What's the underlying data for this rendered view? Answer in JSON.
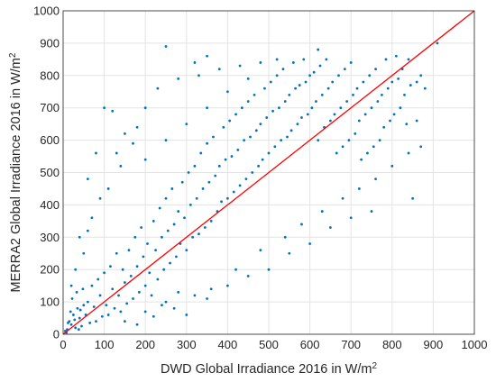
{
  "chart_data": {
    "type": "scatter",
    "xlabel": {
      "text": "DWD Global Irradiance 2016 in W/m",
      "sup": "2"
    },
    "ylabel": {
      "text": "MERRA2 Global Irradiance 2016 in W/m",
      "sup": "2"
    },
    "xlim": [
      0,
      1000
    ],
    "ylim": [
      0,
      1000
    ],
    "x_ticks": [
      0,
      100,
      200,
      300,
      400,
      500,
      600,
      700,
      800,
      900,
      1000
    ],
    "y_ticks": [
      0,
      100,
      200,
      300,
      400,
      500,
      600,
      700,
      800,
      900,
      1000
    ],
    "x_tick_labels": [
      "0",
      "100",
      "200",
      "300",
      "400",
      "500",
      "600",
      "700",
      "800",
      "900",
      "1000"
    ],
    "y_tick_labels": [
      "0",
      "100",
      "200",
      "300",
      "400",
      "500",
      "600",
      "700",
      "800",
      "900",
      "1000"
    ],
    "grid": true,
    "reference_line": {
      "name": "1:1 line",
      "x": [
        0,
        1000
      ],
      "y": [
        0,
        1000
      ],
      "color": "#ff0000"
    },
    "marker_color": "#0072bd",
    "points": [
      [
        5,
        10
      ],
      [
        10,
        15
      ],
      [
        15,
        40
      ],
      [
        20,
        30
      ],
      [
        25,
        60
      ],
      [
        30,
        20
      ],
      [
        35,
        80
      ],
      [
        40,
        50
      ],
      [
        45,
        25
      ],
      [
        50,
        90
      ],
      [
        8,
        5
      ],
      [
        12,
        35
      ],
      [
        18,
        70
      ],
      [
        22,
        110
      ],
      [
        28,
        45
      ],
      [
        33,
        130
      ],
      [
        38,
        15
      ],
      [
        42,
        75
      ],
      [
        48,
        140
      ],
      [
        55,
        60
      ],
      [
        60,
        100
      ],
      [
        65,
        35
      ],
      [
        70,
        150
      ],
      [
        75,
        85
      ],
      [
        80,
        40
      ],
      [
        85,
        170
      ],
      [
        90,
        120
      ],
      [
        95,
        55
      ],
      [
        100,
        190
      ],
      [
        105,
        90
      ],
      [
        110,
        60
      ],
      [
        115,
        210
      ],
      [
        120,
        140
      ],
      [
        125,
        80
      ],
      [
        130,
        250
      ],
      [
        135,
        120
      ],
      [
        140,
        70
      ],
      [
        145,
        200
      ],
      [
        150,
        160
      ],
      [
        155,
        95
      ],
      [
        160,
        260
      ],
      [
        165,
        180
      ],
      [
        170,
        110
      ],
      [
        175,
        300
      ],
      [
        180,
        210
      ],
      [
        185,
        130
      ],
      [
        190,
        330
      ],
      [
        195,
        240
      ],
      [
        200,
        150
      ],
      [
        205,
        280
      ],
      [
        210,
        190
      ],
      [
        215,
        120
      ],
      [
        220,
        350
      ],
      [
        225,
        260
      ],
      [
        230,
        170
      ],
      [
        235,
        390
      ],
      [
        240,
        300
      ],
      [
        245,
        200
      ],
      [
        250,
        420
      ],
      [
        255,
        320
      ],
      [
        260,
        220
      ],
      [
        265,
        450
      ],
      [
        270,
        340
      ],
      [
        275,
        240
      ],
      [
        280,
        380
      ],
      [
        285,
        280
      ],
      [
        290,
        470
      ],
      [
        295,
        360
      ],
      [
        300,
        260
      ],
      [
        305,
        500
      ],
      [
        310,
        400
      ],
      [
        315,
        300
      ],
      [
        320,
        520
      ],
      [
        325,
        420
      ],
      [
        330,
        310
      ],
      [
        335,
        560
      ],
      [
        340,
        450
      ],
      [
        345,
        330
      ],
      [
        350,
        590
      ],
      [
        355,
        470
      ],
      [
        360,
        350
      ],
      [
        365,
        610
      ],
      [
        370,
        490
      ],
      [
        375,
        380
      ],
      [
        380,
        520
      ],
      [
        385,
        410
      ],
      [
        390,
        640
      ],
      [
        395,
        540
      ],
      [
        400,
        420
      ],
      [
        405,
        660
      ],
      [
        410,
        550
      ],
      [
        415,
        440
      ],
      [
        420,
        680
      ],
      [
        425,
        570
      ],
      [
        430,
        460
      ],
      [
        435,
        700
      ],
      [
        440,
        600
      ],
      [
        445,
        480
      ],
      [
        450,
        720
      ],
      [
        455,
        610
      ],
      [
        460,
        500
      ],
      [
        465,
        740
      ],
      [
        470,
        630
      ],
      [
        475,
        520
      ],
      [
        480,
        650
      ],
      [
        485,
        540
      ],
      [
        490,
        760
      ],
      [
        495,
        670
      ],
      [
        500,
        560
      ],
      [
        505,
        780
      ],
      [
        510,
        690
      ],
      [
        515,
        580
      ],
      [
        520,
        800
      ],
      [
        525,
        700
      ],
      [
        530,
        600
      ],
      [
        535,
        820
      ],
      [
        540,
        720
      ],
      [
        545,
        610
      ],
      [
        550,
        740
      ],
      [
        555,
        630
      ],
      [
        560,
        840
      ],
      [
        565,
        760
      ],
      [
        570,
        650
      ],
      [
        575,
        770
      ],
      [
        580,
        670
      ],
      [
        585,
        850
      ],
      [
        590,
        780
      ],
      [
        595,
        680
      ],
      [
        600,
        800
      ],
      [
        605,
        700
      ],
      [
        610,
        810
      ],
      [
        615,
        720
      ],
      [
        620,
        600
      ],
      [
        625,
        830
      ],
      [
        630,
        740
      ],
      [
        635,
        640
      ],
      [
        640,
        850
      ],
      [
        645,
        760
      ],
      [
        650,
        660
      ],
      [
        655,
        780
      ],
      [
        660,
        680
      ],
      [
        665,
        560
      ],
      [
        670,
        800
      ],
      [
        675,
        700
      ],
      [
        680,
        580
      ],
      [
        685,
        820
      ],
      [
        690,
        720
      ],
      [
        695,
        600
      ],
      [
        700,
        840
      ],
      [
        705,
        740
      ],
      [
        710,
        620
      ],
      [
        715,
        760
      ],
      [
        720,
        660
      ],
      [
        725,
        540
      ],
      [
        730,
        780
      ],
      [
        735,
        680
      ],
      [
        740,
        560
      ],
      [
        745,
        800
      ],
      [
        750,
        700
      ],
      [
        755,
        580
      ],
      [
        760,
        820
      ],
      [
        765,
        720
      ],
      [
        770,
        600
      ],
      [
        775,
        740
      ],
      [
        780,
        640
      ],
      [
        785,
        850
      ],
      [
        790,
        760
      ],
      [
        795,
        660
      ],
      [
        800,
        780
      ],
      [
        805,
        680
      ],
      [
        810,
        860
      ],
      [
        815,
        790
      ],
      [
        820,
        700
      ],
      [
        825,
        820
      ],
      [
        830,
        740
      ],
      [
        835,
        650
      ],
      [
        840,
        850
      ],
      [
        845,
        770
      ],
      [
        850,
        420
      ],
      [
        860,
        780
      ],
      [
        870,
        800
      ],
      [
        880,
        760
      ],
      [
        910,
        900
      ],
      [
        870,
        580
      ],
      [
        860,
        660
      ],
      [
        250,
        890
      ],
      [
        350,
        860
      ],
      [
        320,
        840
      ],
      [
        520,
        850
      ],
      [
        620,
        880
      ],
      [
        100,
        700
      ],
      [
        120,
        690
      ],
      [
        150,
        620
      ],
      [
        80,
        560
      ],
      [
        60,
        480
      ],
      [
        130,
        560
      ],
      [
        180,
        640
      ],
      [
        200,
        700
      ],
      [
        90,
        420
      ],
      [
        70,
        360
      ],
      [
        40,
        300
      ],
      [
        50,
        250
      ],
      [
        30,
        200
      ],
      [
        20,
        150
      ],
      [
        60,
        320
      ],
      [
        110,
        450
      ],
      [
        140,
        520
      ],
      [
        170,
        590
      ],
      [
        230,
        760
      ],
      [
        280,
        790
      ],
      [
        330,
        800
      ],
      [
        380,
        820
      ],
      [
        430,
        830
      ],
      [
        480,
        840
      ],
      [
        200,
        540
      ],
      [
        250,
        600
      ],
      [
        300,
        650
      ],
      [
        350,
        700
      ],
      [
        400,
        750
      ],
      [
        450,
        790
      ],
      [
        300,
        60
      ],
      [
        350,
        110
      ],
      [
        400,
        150
      ],
      [
        450,
        180
      ],
      [
        500,
        200
      ],
      [
        550,
        250
      ],
      [
        600,
        280
      ],
      [
        650,
        330
      ],
      [
        700,
        360
      ],
      [
        750,
        380
      ],
      [
        420,
        200
      ],
      [
        480,
        260
      ],
      [
        540,
        300
      ],
      [
        580,
        340
      ],
      [
        630,
        380
      ],
      [
        680,
        420
      ],
      [
        720,
        450
      ],
      [
        760,
        480
      ],
      [
        800,
        520
      ],
      [
        840,
        560
      ],
      [
        150,
        40
      ],
      [
        200,
        70
      ],
      [
        250,
        100
      ],
      [
        180,
        30
      ],
      [
        220,
        55
      ],
      [
        270,
        80
      ],
      [
        320,
        120
      ],
      [
        360,
        140
      ],
      [
        280,
        130
      ],
      [
        240,
        90
      ]
    ]
  }
}
